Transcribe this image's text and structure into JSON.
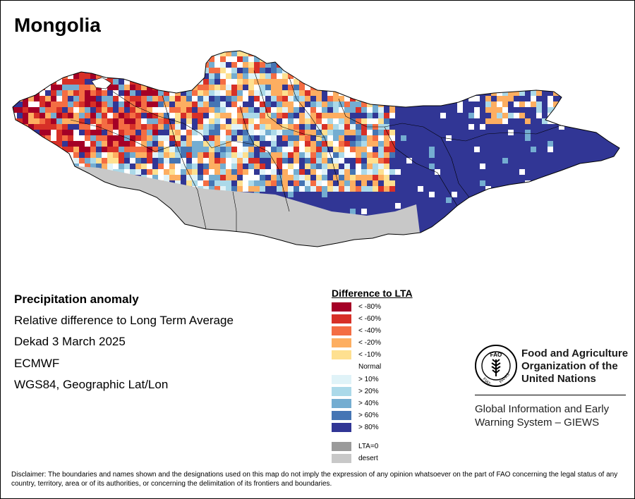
{
  "title": "Mongolia",
  "info": {
    "heading": "Precipitation anomaly",
    "line1": "Relative difference to Long Term Average",
    "line2": "Dekad 3 March 2025",
    "line3": "ECMWF",
    "line4": "WGS84, Geographic Lat/Lon"
  },
  "legend": {
    "title": "Difference to LTA",
    "items": [
      {
        "label": "< -80%",
        "color": "#a50026"
      },
      {
        "label": "< -60%",
        "color": "#d73027"
      },
      {
        "label": "< -40%",
        "color": "#f46d43"
      },
      {
        "label": "< -20%",
        "color": "#fdae61"
      },
      {
        "label": "< -10%",
        "color": "#fee090"
      },
      {
        "label": "Normal",
        "color": "#ffffff"
      },
      {
        "label": "> 10%",
        "color": "#e0f3f8"
      },
      {
        "label": "> 20%",
        "color": "#abd9e9"
      },
      {
        "label": "> 40%",
        "color": "#74add1"
      },
      {
        "label": "> 60%",
        "color": "#4575b4"
      },
      {
        "label": "> 80%",
        "color": "#313695"
      },
      {
        "label": "LTA=0",
        "color": "#9a9a9a"
      },
      {
        "label": "desert",
        "color": "#c8c8c8"
      }
    ]
  },
  "org": {
    "logo_top": "FAO",
    "logo_left": "FIAT",
    "logo_right": "PANIS",
    "name_line1": "Food and Agriculture",
    "name_line2": "Organization of the",
    "name_line3": "United Nations",
    "system_line1": "Global Information and Early",
    "system_line2": "Warning System – GIEWS"
  },
  "disclaimer": "Disclaimer: The boundaries and names shown and the designations used on this map do not imply the expression of any opinion whatsoever on the part of FAO concerning the legal status of any country, territory, area or of its authorities, or concerning the delimitation of its frontiers and boundaries."
}
